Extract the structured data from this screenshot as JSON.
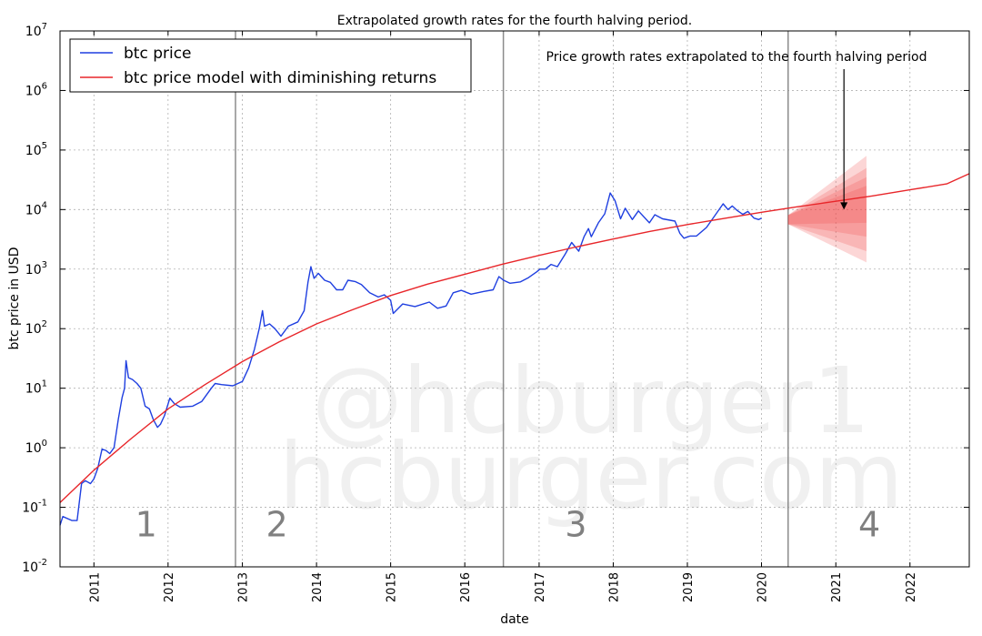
{
  "chart_data": {
    "type": "line",
    "title": "Extrapolated growth rates for the fourth halving period.",
    "xlabel": "date",
    "ylabel": "btc price in USD",
    "y_scale": "log",
    "xlim": [
      "2010-07-18",
      "2022-10-20"
    ],
    "ylim": [
      0.01,
      10000000
    ],
    "x_ticks": [
      "2011",
      "2012",
      "2013",
      "2014",
      "2015",
      "2016",
      "2017",
      "2018",
      "2019",
      "2020",
      "2021",
      "2022"
    ],
    "y_ticks": [
      {
        "value": 0.01,
        "base": "10",
        "exp": "-2"
      },
      {
        "value": 0.1,
        "base": "10",
        "exp": "-1"
      },
      {
        "value": 1,
        "base": "10",
        "exp": "0"
      },
      {
        "value": 10,
        "base": "10",
        "exp": "1"
      },
      {
        "value": 100,
        "base": "10",
        "exp": "2"
      },
      {
        "value": 1000,
        "base": "10",
        "exp": "3"
      },
      {
        "value": 10000,
        "base": "10",
        "exp": "4"
      },
      {
        "value": 100000,
        "base": "10",
        "exp": "5"
      },
      {
        "value": 1000000,
        "base": "10",
        "exp": "6"
      },
      {
        "value": 10000000,
        "base": "10",
        "exp": "7"
      }
    ],
    "grid": true,
    "legend_position": "top-left",
    "series": [
      {
        "name": "btc price",
        "color": "#1f3fe0",
        "points": [
          [
            "2010-07-18",
            0.05
          ],
          [
            "2010-08-01",
            0.07
          ],
          [
            "2010-09-15",
            0.06
          ],
          [
            "2010-10-10",
            0.06
          ],
          [
            "2010-11-01",
            0.25
          ],
          [
            "2010-11-20",
            0.28
          ],
          [
            "2010-12-15",
            0.25
          ],
          [
            "2011-01-01",
            0.3
          ],
          [
            "2011-01-20",
            0.45
          ],
          [
            "2011-02-10",
            0.95
          ],
          [
            "2011-03-01",
            0.9
          ],
          [
            "2011-03-20",
            0.8
          ],
          [
            "2011-04-10",
            1.0
          ],
          [
            "2011-05-01",
            3.0
          ],
          [
            "2011-05-20",
            7.0
          ],
          [
            "2011-06-01",
            10.0
          ],
          [
            "2011-06-08",
            29.0
          ],
          [
            "2011-06-20",
            15.0
          ],
          [
            "2011-07-10",
            14.0
          ],
          [
            "2011-08-01",
            12.0
          ],
          [
            "2011-08-20",
            10.0
          ],
          [
            "2011-09-10",
            5.0
          ],
          [
            "2011-10-01",
            4.5
          ],
          [
            "2011-10-20",
            3.0
          ],
          [
            "2011-11-10",
            2.2
          ],
          [
            "2011-11-25",
            2.5
          ],
          [
            "2011-12-15",
            3.5
          ],
          [
            "2012-01-10",
            6.8
          ],
          [
            "2012-02-01",
            5.5
          ],
          [
            "2012-03-01",
            4.8
          ],
          [
            "2012-05-01",
            5.0
          ],
          [
            "2012-06-15",
            6.0
          ],
          [
            "2012-08-01",
            10.0
          ],
          [
            "2012-08-20",
            12.0
          ],
          [
            "2012-09-20",
            11.5
          ],
          [
            "2012-11-15",
            11.0
          ],
          [
            "2013-01-01",
            13.0
          ],
          [
            "2013-02-01",
            22.0
          ],
          [
            "2013-03-01",
            45.0
          ],
          [
            "2013-03-25",
            100.0
          ],
          [
            "2013-04-10",
            200.0
          ],
          [
            "2013-04-20",
            110.0
          ],
          [
            "2013-05-15",
            120.0
          ],
          [
            "2013-06-10",
            100.0
          ],
          [
            "2013-07-10",
            75.0
          ],
          [
            "2013-08-15",
            110.0
          ],
          [
            "2013-10-01",
            130.0
          ],
          [
            "2013-11-01",
            200.0
          ],
          [
            "2013-11-20",
            600.0
          ],
          [
            "2013-12-04",
            1100.0
          ],
          [
            "2013-12-20",
            700.0
          ],
          [
            "2014-01-10",
            850.0
          ],
          [
            "2014-02-10",
            650.0
          ],
          [
            "2014-03-10",
            600.0
          ],
          [
            "2014-04-10",
            450.0
          ],
          [
            "2014-05-10",
            450.0
          ],
          [
            "2014-06-05",
            650.0
          ],
          [
            "2014-07-10",
            620.0
          ],
          [
            "2014-08-10",
            550.0
          ],
          [
            "2014-09-20",
            400.0
          ],
          [
            "2014-11-01",
            340.0
          ],
          [
            "2014-12-01",
            370.0
          ],
          [
            "2015-01-01",
            300.0
          ],
          [
            "2015-01-14",
            180.0
          ],
          [
            "2015-03-01",
            260.0
          ],
          [
            "2015-05-01",
            235.0
          ],
          [
            "2015-07-10",
            280.0
          ],
          [
            "2015-08-20",
            220.0
          ],
          [
            "2015-10-01",
            240.0
          ],
          [
            "2015-11-05",
            400.0
          ],
          [
            "2015-12-15",
            440.0
          ],
          [
            "2016-02-01",
            380.0
          ],
          [
            "2016-04-01",
            420.0
          ],
          [
            "2016-05-20",
            450.0
          ],
          [
            "2016-06-17",
            750.0
          ],
          [
            "2016-07-10",
            650.0
          ],
          [
            "2016-08-10",
            580.0
          ],
          [
            "2016-10-01",
            610.0
          ],
          [
            "2016-11-10",
            720.0
          ],
          [
            "2016-12-20",
            900.0
          ],
          [
            "2017-01-05",
            1000.0
          ],
          [
            "2017-02-01",
            1000.0
          ],
          [
            "2017-03-01",
            1200.0
          ],
          [
            "2017-04-01",
            1100.0
          ],
          [
            "2017-05-10",
            1800.0
          ],
          [
            "2017-06-10",
            2800.0
          ],
          [
            "2017-07-15",
            2000.0
          ],
          [
            "2017-08-10",
            3500.0
          ],
          [
            "2017-09-01",
            4800.0
          ],
          [
            "2017-09-15",
            3500.0
          ],
          [
            "2017-10-20",
            6000.0
          ],
          [
            "2017-11-20",
            8500.0
          ],
          [
            "2017-12-17",
            19000.0
          ],
          [
            "2018-01-10",
            14000.0
          ],
          [
            "2018-02-06",
            7000.0
          ],
          [
            "2018-03-01",
            10500.0
          ],
          [
            "2018-04-05",
            6800.0
          ],
          [
            "2018-05-05",
            9500.0
          ],
          [
            "2018-06-28",
            6000.0
          ],
          [
            "2018-07-25",
            8200.0
          ],
          [
            "2018-09-01",
            7000.0
          ],
          [
            "2018-11-01",
            6400.0
          ],
          [
            "2018-11-25",
            4000.0
          ],
          [
            "2018-12-15",
            3300.0
          ],
          [
            "2019-01-15",
            3600.0
          ],
          [
            "2019-02-15",
            3600.0
          ],
          [
            "2019-04-05",
            5000.0
          ],
          [
            "2019-05-15",
            7800.0
          ],
          [
            "2019-06-26",
            12500.0
          ],
          [
            "2019-07-20",
            10000.0
          ],
          [
            "2019-08-10",
            11500.0
          ],
          [
            "2019-09-01",
            9800.0
          ],
          [
            "2019-10-01",
            8300.0
          ],
          [
            "2019-10-26",
            9300.0
          ],
          [
            "2019-11-25",
            7200.0
          ],
          [
            "2019-12-18",
            6800.0
          ],
          [
            "2020-01-01",
            7200.0
          ]
        ]
      },
      {
        "name": "btc price model with diminishing returns",
        "color": "#e8262a",
        "points": [
          [
            "2010-07-18",
            0.12
          ],
          [
            "2011-01-01",
            0.42
          ],
          [
            "2011-07-01",
            1.4
          ],
          [
            "2012-01-01",
            4.5
          ],
          [
            "2012-07-01",
            11.5
          ],
          [
            "2013-01-01",
            28.0
          ],
          [
            "2013-07-01",
            60.0
          ],
          [
            "2014-01-01",
            120.0
          ],
          [
            "2014-07-01",
            210.0
          ],
          [
            "2015-01-01",
            360.0
          ],
          [
            "2015-07-01",
            560.0
          ],
          [
            "2016-01-01",
            820.0
          ],
          [
            "2016-07-01",
            1200.0
          ],
          [
            "2017-01-01",
            1700.0
          ],
          [
            "2017-07-01",
            2350.0
          ],
          [
            "2018-01-01",
            3200.0
          ],
          [
            "2018-07-01",
            4300.0
          ],
          [
            "2019-01-01",
            5600.0
          ],
          [
            "2019-07-01",
            7100.0
          ],
          [
            "2020-01-01",
            9000.0
          ],
          [
            "2020-07-01",
            11200.0
          ],
          [
            "2021-01-01",
            13800.0
          ],
          [
            "2021-07-01",
            17000.0
          ],
          [
            "2022-01-01",
            21500.0
          ],
          [
            "2022-07-01",
            27000.0
          ],
          [
            "2022-10-20",
            40000.0
          ]
        ]
      }
    ],
    "extrapolation": {
      "color": "#f04545",
      "start": "2020-05-11",
      "end": "2021-06-01",
      "start_value": 7000,
      "bands": [
        {
          "upper": 80000,
          "lower": 1300
        },
        {
          "upper": 50000,
          "lower": 2000
        },
        {
          "upper": 35000,
          "lower": 3500
        },
        {
          "upper": 25000,
          "lower": 6000
        }
      ]
    },
    "halving_lines": [
      "2012-11-28",
      "2016-07-09",
      "2020-05-11"
    ],
    "period_labels": [
      {
        "text": "1",
        "x": "2011-09-15",
        "y": 0.05
      },
      {
        "text": "2",
        "x": "2013-06-20",
        "y": 0.05
      },
      {
        "text": "3",
        "x": "2017-07-01",
        "y": 0.05
      },
      {
        "text": "4",
        "x": "2021-06-15",
        "y": 0.05
      }
    ],
    "annotation": {
      "text": "Price growth rates extrapolated to the fourth halving period",
      "target_x": "2021-02-10",
      "target_y": 10000
    },
    "watermark": {
      "line1": "@hcburger1",
      "line2": "hcburger.com"
    }
  }
}
